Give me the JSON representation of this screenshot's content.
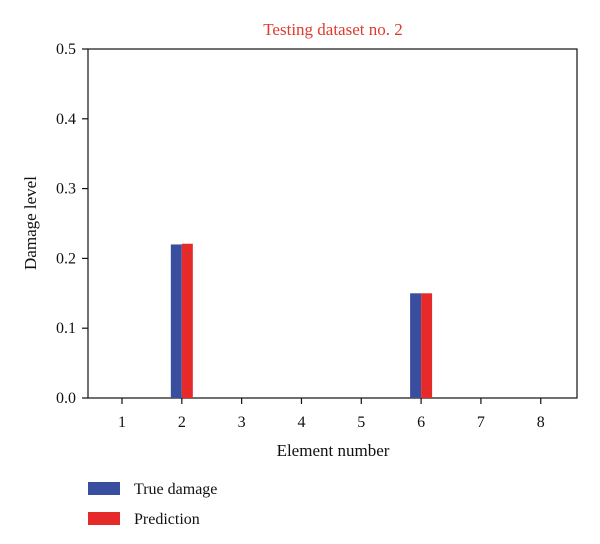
{
  "chart_data": {
    "type": "bar",
    "title": "Testing dataset no. 2",
    "xlabel": "Element number",
    "ylabel": "Damage level",
    "categories": [
      "1",
      "2",
      "3",
      "4",
      "5",
      "6",
      "7",
      "8"
    ],
    "yticks": [
      "0.0",
      "0.1",
      "0.2",
      "0.3",
      "0.4",
      "0.5"
    ],
    "ylim": [
      0,
      0.5
    ],
    "grid": false,
    "legend_position": "bottom-left, outside plot",
    "series": [
      {
        "name": "True damage",
        "color": "#3a4ea0",
        "values": [
          0,
          0.22,
          0,
          0,
          0,
          0.15,
          0,
          0
        ]
      },
      {
        "name": "Prediction",
        "color": "#e62a2a",
        "values": [
          0,
          0.221,
          0,
          0,
          0,
          0.15,
          0,
          0
        ]
      }
    ]
  }
}
